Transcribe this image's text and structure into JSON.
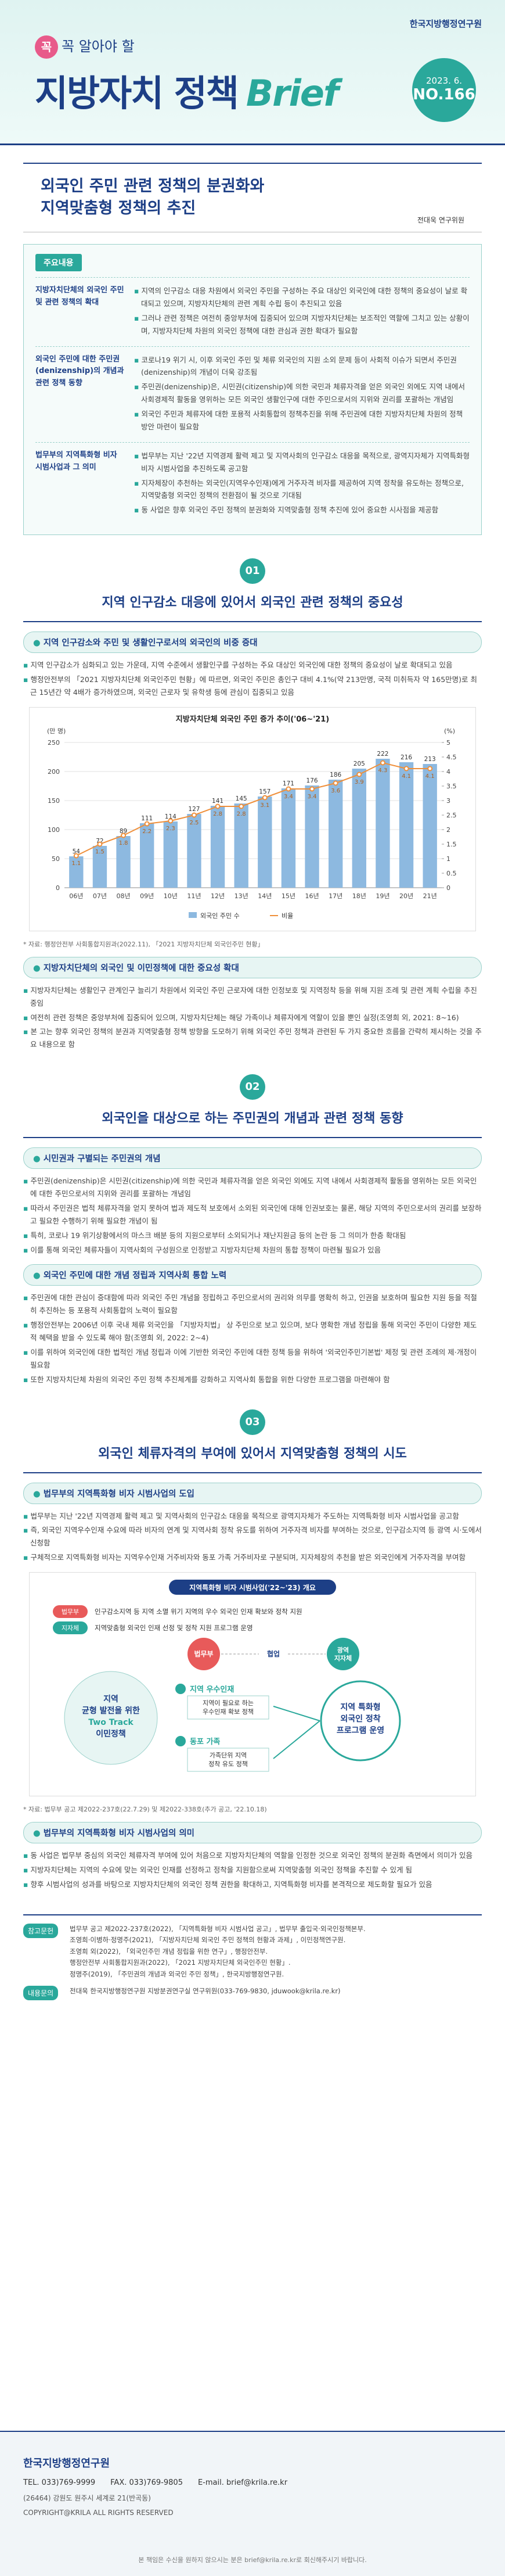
{
  "header": {
    "kicker": "꼭 알아야 할",
    "title": "지방자치 정책",
    "brand": "Brief",
    "org": "한국지방행정연구원",
    "date": "2023. 6.",
    "issue": "NO.166"
  },
  "article": {
    "title_lines": [
      "외국인 주민 관련 정책의 분권화와",
      "지역맞춤형 정책의 추진"
    ],
    "author": "전대욱 연구위원"
  },
  "summary": {
    "label": "주요내용",
    "rows": [
      {
        "heading": "지방자치단체의 외국인 주민 및 관련 정책의 확대",
        "bullets": [
          "지역의 인구감소 대응 차원에서 외국인 주민을 구성하는 주요 대상인 외국인에 대한 정책의 중요성이 날로 확대되고 있으며, 지방자치단체의 관련 계획 수립 등이 추진되고 있음",
          "그러나 관련 정책은 여전히 중앙부처에 집중되어 있으며 지방자치단체는 보조적인 역할에 그치고 있는 상황이며, 지방자치단체 차원의 외국인 정책에 대한 관심과 권한 확대가 필요함"
        ]
      },
      {
        "heading": "외국인 주민에 대한 주민권(denizenship)의 개념과 관련 정책 동향",
        "bullets": [
          "코로나19 위기 시, 이후 외국인 주민 및 체류 외국인의 지원 소외 문제 등이 사회적 이슈가 되면서 주민권(denizenship)의 개념이 더욱 강조됨",
          "주민권(denizenship)은, 시민권(citizenship)에 의한 국민과 체류자격을 얻은 외국인 외에도 지역 내에서 사회경제적 활동을 영위하는 모든 외국인 생활인구에 대한 주민으로서의 지위와 권리를 포괄하는 개념임",
          "외국인 주민과 체류자에 대한 포용적 사회통합의 정책추진을 위해 주민권에 대한 지방자치단체 차원의 정책 방안 마련이 필요함"
        ]
      },
      {
        "heading": "법무부의 지역특화형 비자 시범사업과 그 의미",
        "bullets": [
          "법무부는 지난 '22년 지역경제 활력 제고 및 지역사회의 인구감소 대응을 목적으로, 광역지자체가 지역특화형 비자 시범사업을 추진하도록 공고함",
          "지자체장이 추천하는 외국인(지역우수인재)에게 거주자격 비자를 제공하여 지역 정착을 유도하는 정책으로, 지역맞춤형 외국인 정책의 전환점이 될 것으로 기대됨",
          "동 사업은 향후 외국인 주민 정책의 분권화와 지역맞춤형 정책 추진에 있어 중요한 시사점을 제공함"
        ]
      }
    ]
  },
  "sections": [
    {
      "number": "01",
      "title": "지역 인구감소 대응에 있어서 외국인 관련 정책의 중요성",
      "subsections": [
        {
          "title": "지역 인구감소와 주민 및 생활인구로서의 외국인의 비중 증대",
          "bullets": [
            "지역 인구감소가 심화되고 있는 가운데, 지역 수준에서 생활인구를 구성하는 주요 대상인 외국인에 대한 정책의 중요성이 날로 확대되고 있음",
            "행정안전부의 「2021 지방자치단체 외국인주민 현황」에 따르면, 외국인 주민은 총인구 대비 4.1%(약 213만명, 국적 미취득자 약 165만명)로 최근 15년간 약 4배가 증가하였으며, 외국인 근로자 및 유학생 등에 관심이 집중되고 있음"
          ]
        },
        {
          "title": "지방자치단체의 외국인 및 이민정책에 대한 중요성 확대",
          "bullets": [
            "지방자치단체는 생활인구 관계인구 늘리기 차원에서 외국인 주민 근로자에 대한 인정보호 및 지역정착 등을 위해 지원 조례 및 관련 계획 수립을 추진 중임",
            "여전히 관련 정책은 중앙부처에 집중되어 있으며, 지방자치단체는 해당 가족이나 체류자에게 역할이 있을 뿐인 실정(조영희 외, 2021: 8~16)",
            "본 고는 향후 외국인 정책의 분권과 지역맞춤형 정책 방향을 도모하기 위해 외국인 주민 정책과 관련된 두 가지 중요한 흐름을 간략히 제시하는 것을 주요 내용으로 함"
          ]
        }
      ]
    },
    {
      "number": "02",
      "title": "외국인을 대상으로 하는 주민권의 개념과 관련 정책 동향",
      "subsections": [
        {
          "title": "시민권과 구별되는 주민권의 개념",
          "bullets": [
            "주민권(denizenship)은 시민권(citizenship)에 의한 국민과 체류자격을 얻은 외국인 외에도 지역 내에서 사회경제적 활동을 영위하는 모든 외국인에 대한 주민으로서의 지위와 권리를 포괄하는 개념임",
            "따라서 주민권은 법적 체류자격을 얻지 못하여 법과 제도적 보호에서 소외된 외국인에 대해 인권보호는 물론, 해당 지역의 주민으로서의 권리를 보장하고 필요한 수행하기 위해 필요한 개념이 됨",
            "특히, 코로나 19 위기상황에서의 마스크 배분 등의 지원으로부터 소외되거나 재난지원금 등의 논란 등 그 의미가 한층 확대됨",
            "이를 통해 외국인 체류자들이 지역사회의 구성원으로 인정받고 지방자치단체 차원의 통합 정책이 마련될 필요가 있음"
          ]
        },
        {
          "title": "외국인 주민에 대한 개념 정립과 지역사회 통합 노력",
          "bullets": [
            "주민권에 대한 관심이 증대함에 따라 외국인 주민 개념을 정립하고 주민으로서의 권리와 의무를 명확히 하고, 인권을 보호하며 필요한 지원 등을 적절히 추진하는 등 포용적 사회통합의 노력이 필요함",
            "행정안전부는 2006년 이후 국내 체류 외국인을 「지방자치법」 상 주민으로 보고 있으며, 보다 명확한 개념 정립을 통해 외국인 주민이 다양한 제도적 혜택을 받을 수 있도록 해야 함(조영희 외, 2022: 2~4)",
            "이를 위하여 외국인에 대한 법적인 개념 정립과 이에 기반한 외국인 주민에 대한 정책 등을 위하여 '외국인주민기본법' 제정 및 관련 조례의 제·개정이 필요함",
            "또한 지방자치단체 차원의 외국인 주민 정책 추진체계를 강화하고 지역사회 통합을 위한 다양한 프로그램을 마련해야 함"
          ]
        }
      ]
    },
    {
      "number": "03",
      "title": "외국인 체류자격의 부여에 있어서 지역맞춤형 정책의 시도",
      "subsections": [
        {
          "title": "법무부의 지역특화형 비자 시범사업의 도입",
          "bullets": [
            "법무부는 지난 '22년 지역경제 활력 제고 및 지역사회의 인구감소 대응을 목적으로 광역지자체가 주도하는 지역특화형 비자 시범사업을 공고함",
            "즉, 외국인 지역우수인재 수요에 따라 비자의 연계 및 지역사회 정착 유도를 위하여 거주자격 비자를 부여하는 것으로, 인구감소지역 등 광역 시·도에서 신청함",
            "구체적으로 지역특화형 비자는 지역우수인재 거주비자와 동포 가족 거주비자로 구분되며, 지자체장의 추천을 받은 외국인에게 거주자격을 부여함"
          ]
        },
        {
          "title": "법무부의 지역특화형 비자 시범사업의 의미",
          "bullets": [
            "동 사업은 법무부 중심의 외국인 체류자격 부여에 있어 처음으로 지방자치단체의 역할을 인정한 것으로 외국인 정책의 분권화 측면에서 의미가 있음",
            "지방자치단체는 지역의 수요에 맞는 외국인 인재를 선정하고 정착을 지원함으로써 지역맞춤형 외국인 정책을 추진할 수 있게 됨",
            "향후 시범사업의 성과를 바탕으로 지방자치단체의 외국인 정책 권한을 확대하고, 지역특화형 비자를 본격적으로 제도화할 필요가 있음"
          ]
        }
      ]
    }
  ],
  "chart_data": {
    "type": "bar_line",
    "title": "지방자치단체 외국인 주민 증가 추이('06~'21)",
    "y_unit": "(만 명)",
    "y2_unit": "(%)",
    "categories": [
      "06년",
      "07년",
      "08년",
      "09년",
      "10년",
      "11년",
      "12년",
      "13년",
      "14년",
      "15년",
      "16년",
      "17년",
      "18년",
      "19년",
      "20년",
      "21년"
    ],
    "series": [
      {
        "name": "외국인 주민 수",
        "type": "bar",
        "color": "#8db9e0",
        "values": [
          54,
          72,
          89,
          111,
          114,
          127,
          141,
          145,
          157,
          171,
          176,
          186,
          205,
          222,
          216,
          213
        ]
      },
      {
        "name": "비율",
        "type": "line",
        "axis": "y2",
        "color": "#ef8f3a",
        "values": [
          1.1,
          1.5,
          1.8,
          2.2,
          2.3,
          2.5,
          2.8,
          2.8,
          3.1,
          3.4,
          3.4,
          3.6,
          3.9,
          4.3,
          4.1,
          4.1
        ]
      }
    ],
    "ylim": [
      0,
      250
    ],
    "yticks": [
      0,
      50,
      100,
      150,
      200,
      250
    ],
    "y2lim": [
      0,
      5
    ],
    "y2ticks": [
      0,
      0.5,
      1,
      1.5,
      2,
      2.5,
      3,
      3.5,
      4,
      4.5,
      5
    ],
    "grid": true,
    "note": "* 자료: 행정안전부 사회통합지원과(2022.11), 「2021 지방자치단체 외국인주민 현황」"
  },
  "diagram": {
    "title": "지역특화형 비자 시범사업('22~'23) 개요",
    "tags": [
      {
        "label": "법무부",
        "text": "인구감소지역 등 지역 소멸 위기 지역의 우수 외국인 인재 확보와 정착 지원"
      },
      {
        "label": "지자체",
        "text": "지역맞춤형 외국인 인재 선정 및 정착 지원 프로그램 운영"
      }
    ],
    "left": [
      "지역",
      "균형 발전을 위한",
      "Two Track",
      "이민정책"
    ],
    "ministry": "법무부",
    "coop": "협업",
    "province": [
      "광역",
      "지자체"
    ],
    "talent": {
      "title": "지역 우수인재",
      "text": [
        "지역이 필요로 하는",
        "우수인재 확보 정책"
      ]
    },
    "family": {
      "title": "동포 가족",
      "text": [
        "가족단위 지역",
        "정착 유도 정책"
      ]
    },
    "result": [
      "지역 특화형",
      "외국인 정착",
      "프로그램 운영"
    ],
    "note": "* 자료: 법무부 공고 제2022-237호(22.7.29) 및 제2022-338호(추가 공고, '22.10.18)"
  },
  "references": {
    "label": "참고문헌",
    "items": [
      "법무부 공고 제2022-237호(2022), 「지역특화형 비자 시범사업 공고」, 법무부 출입국·외국인정책본부.",
      "조영희·이병하·정명주(2021), 「지방자치단체 외국인 주민 정책의 현황과 과제」, 이민정책연구원.",
      "조영희 외(2022), 「외국인주민 개념 정립을 위한 연구」, 행정안전부.",
      "행정안전부 사회통합지원과(2022), 「2021 지방자치단체 외국인주민 현황」.",
      "정명주(2019), 「주민권의 개념과 외국인 주민 정책」, 한국지방행정연구원."
    ]
  },
  "contact": {
    "label": "내용문의",
    "text": "전대욱 한국지방행정연구원 지방분권연구실 연구위원(033-769-9830, jduwook@krila.re.kr)"
  },
  "footer": {
    "org": "한국지방행정연구원",
    "tel": "TEL. 033)769-9999",
    "fax": "FAX. 033)769-9805",
    "email": "E-mail. brief@krila.re.kr",
    "address": "(26464) 강원도 원주시 세계로 21(반곡동)",
    "copyright": "COPYRIGHT@KRILA ALL RIGHTS RESERVED",
    "notice": "본 책임은 수신을 원하지 않으시는 분은 brief@krila.re.kr로 회신해주시기 바랍니다."
  }
}
